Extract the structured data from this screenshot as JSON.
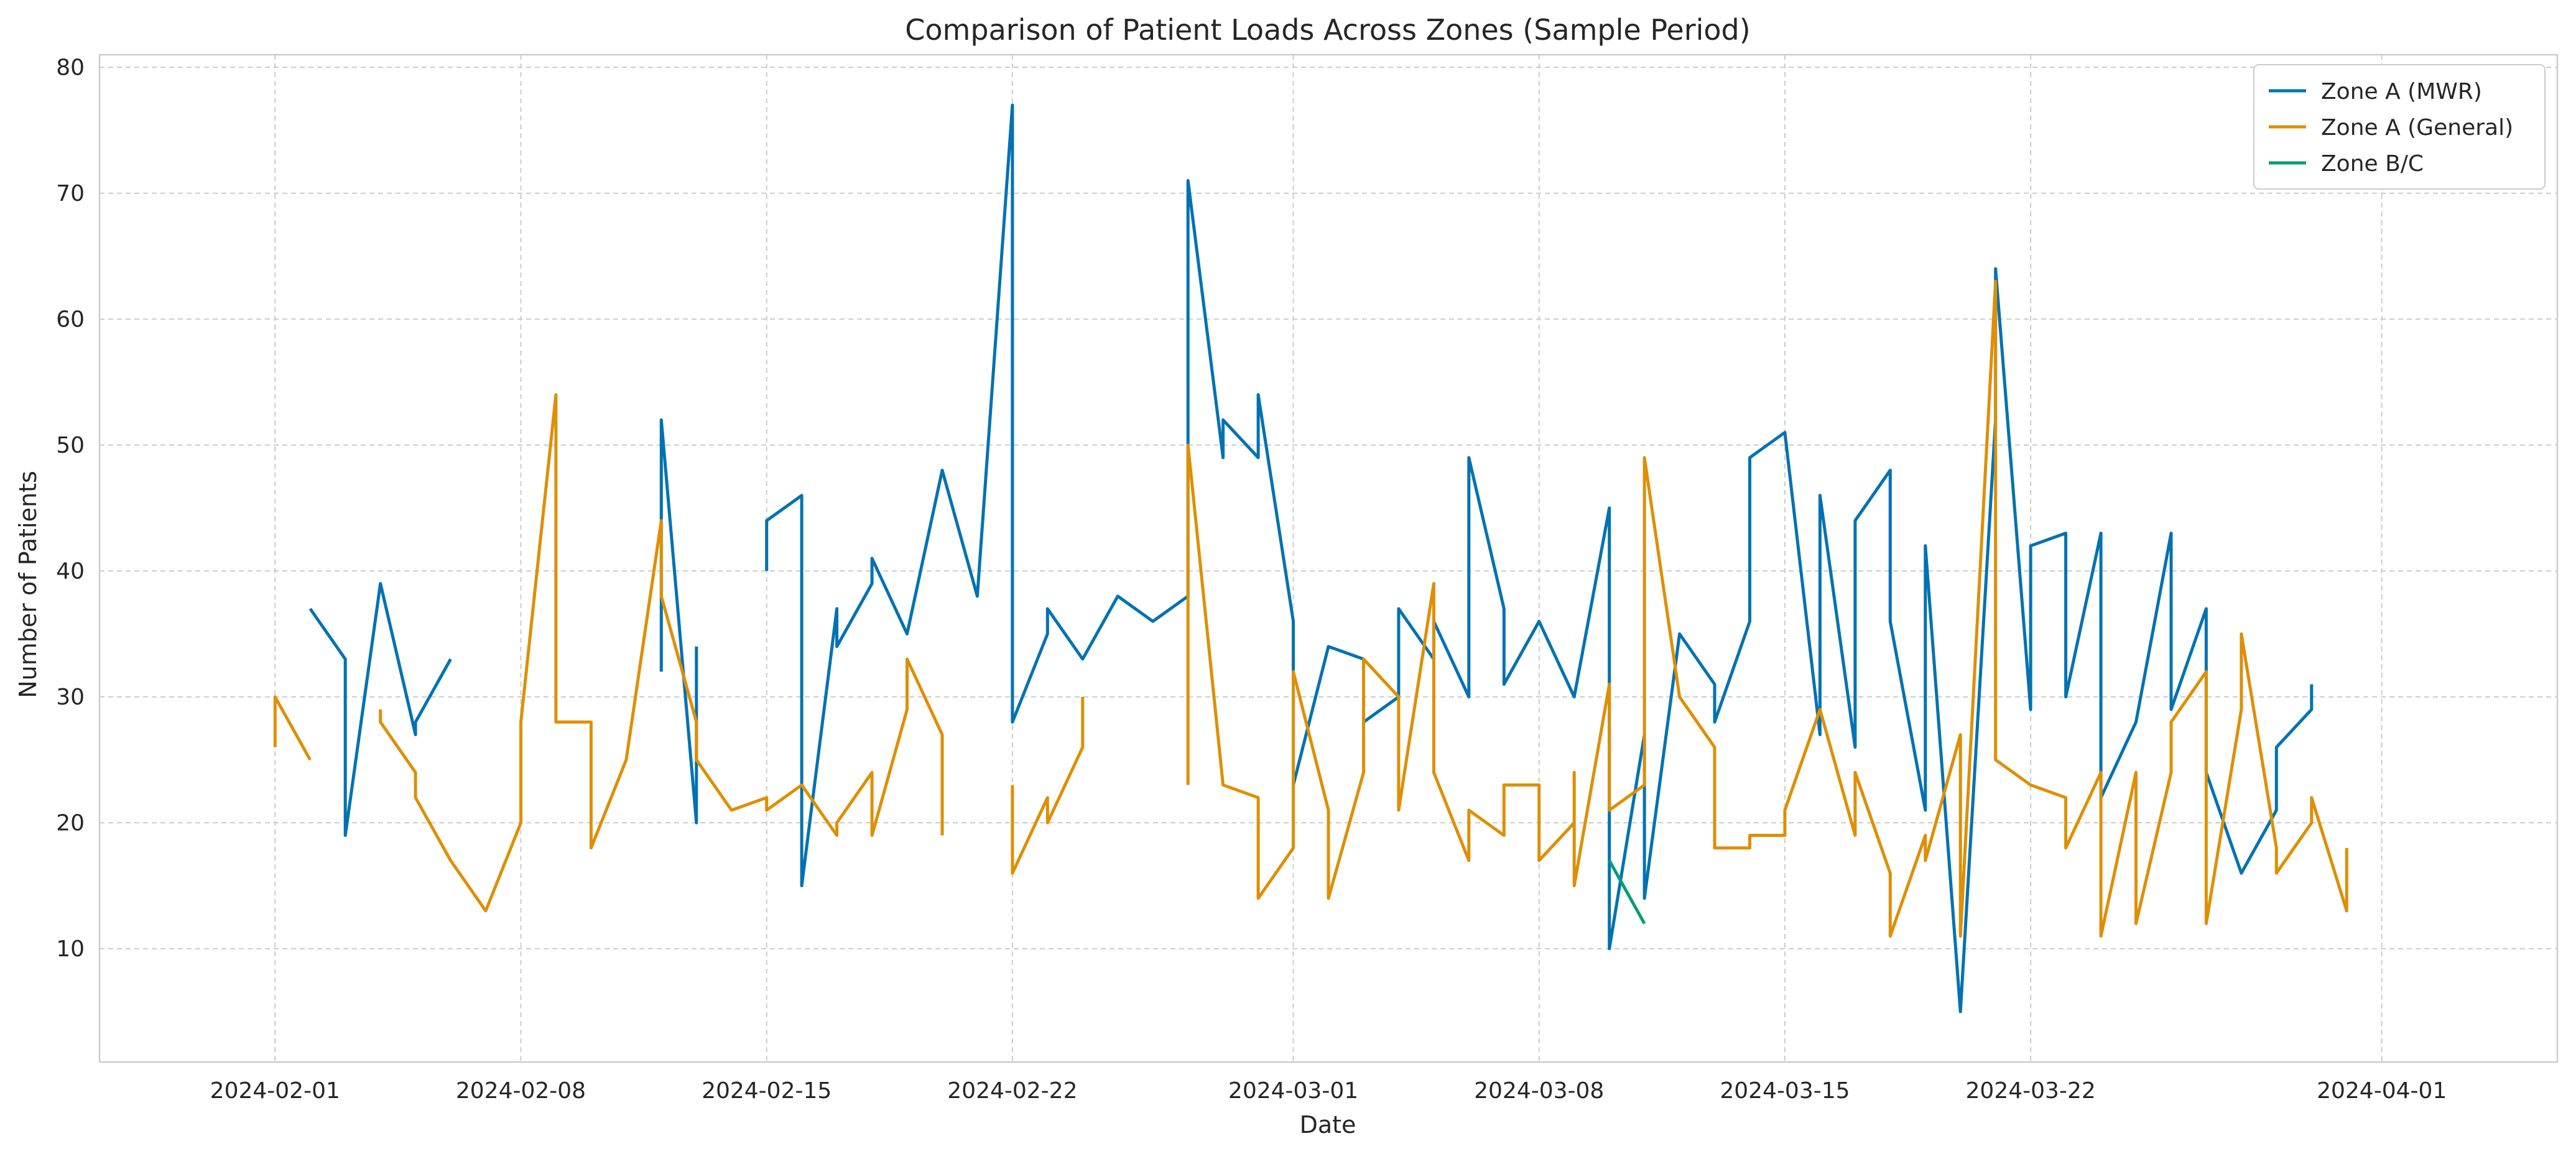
{
  "chart_data": {
    "type": "line",
    "title": "Comparison of Patient Loads Across Zones (Sample Period)",
    "xlabel": "Date",
    "ylabel": "Number of Patients",
    "x_axis_type": "date",
    "xlim": [
      "2024-01-27",
      "2024-04-06"
    ],
    "ylim": [
      1,
      81
    ],
    "x_ticks": [
      "2024-02-01",
      "2024-02-08",
      "2024-02-15",
      "2024-02-22",
      "2024-03-01",
      "2024-03-08",
      "2024-03-15",
      "2024-03-22",
      "2024-04-01"
    ],
    "y_ticks": [
      10,
      20,
      30,
      40,
      50,
      60,
      70,
      80
    ],
    "grid": true,
    "legend_position": "top-right",
    "series": [
      {
        "name": "Zone A (MWR)",
        "color": "#0072b2",
        "points": [
          [
            "2024-02-02",
            37
          ],
          [
            "2024-02-03",
            33
          ],
          [
            "2024-02-03",
            19
          ],
          [
            "2024-02-04",
            39
          ],
          [
            "2024-02-05",
            27
          ],
          [
            "2024-02-05",
            28
          ],
          [
            "2024-02-06",
            33
          ],
          [
            "2024-02-12",
            32
          ],
          [
            "2024-02-12",
            52
          ],
          [
            "2024-02-13",
            20
          ],
          [
            "2024-02-13",
            34
          ],
          [
            "2024-02-15",
            40
          ],
          [
            "2024-02-15",
            44
          ],
          [
            "2024-02-16",
            46
          ],
          [
            "2024-02-16",
            15
          ],
          [
            "2024-02-17",
            37
          ],
          [
            "2024-02-17",
            34
          ],
          [
            "2024-02-18",
            39
          ],
          [
            "2024-02-18",
            41
          ],
          [
            "2024-02-19",
            35
          ],
          [
            "2024-02-20",
            48
          ],
          [
            "2024-02-21",
            38
          ],
          [
            "2024-02-22",
            77
          ],
          [
            "2024-02-22",
            28
          ],
          [
            "2024-02-23",
            35
          ],
          [
            "2024-02-23",
            37
          ],
          [
            "2024-02-24",
            33
          ],
          [
            "2024-02-25",
            38
          ],
          [
            "2024-02-26",
            36
          ],
          [
            "2024-02-27",
            38
          ],
          [
            "2024-02-27",
            71
          ],
          [
            "2024-02-28",
            49
          ],
          [
            "2024-02-28",
            52
          ],
          [
            "2024-02-29",
            49
          ],
          [
            "2024-02-29",
            54
          ],
          [
            "2024-03-01",
            36
          ],
          [
            "2024-03-01",
            23
          ],
          [
            "2024-03-02",
            34
          ],
          [
            "2024-03-03",
            33
          ],
          [
            "2024-03-03",
            28
          ],
          [
            "2024-03-04",
            30
          ],
          [
            "2024-03-04",
            37
          ],
          [
            "2024-03-05",
            33
          ],
          [
            "2024-03-05",
            36
          ],
          [
            "2024-03-06",
            30
          ],
          [
            "2024-03-06",
            49
          ],
          [
            "2024-03-07",
            37
          ],
          [
            "2024-03-07",
            31
          ],
          [
            "2024-03-08",
            36
          ],
          [
            "2024-03-09",
            30
          ],
          [
            "2024-03-10",
            45
          ],
          [
            "2024-03-10",
            10
          ],
          [
            "2024-03-11",
            27
          ],
          [
            "2024-03-11",
            14
          ],
          [
            "2024-03-12",
            35
          ],
          [
            "2024-03-13",
            31
          ],
          [
            "2024-03-13",
            28
          ],
          [
            "2024-03-14",
            36
          ],
          [
            "2024-03-14",
            49
          ],
          [
            "2024-03-15",
            51
          ],
          [
            "2024-03-16",
            27
          ],
          [
            "2024-03-16",
            46
          ],
          [
            "2024-03-17",
            26
          ],
          [
            "2024-03-17",
            44
          ],
          [
            "2024-03-18",
            48
          ],
          [
            "2024-03-18",
            36
          ],
          [
            "2024-03-19",
            21
          ],
          [
            "2024-03-19",
            42
          ],
          [
            "2024-03-20",
            5
          ],
          [
            "2024-03-21",
            52
          ],
          [
            "2024-03-21",
            64
          ],
          [
            "2024-03-22",
            29
          ],
          [
            "2024-03-22",
            42
          ],
          [
            "2024-03-23",
            43
          ],
          [
            "2024-03-23",
            30
          ],
          [
            "2024-03-24",
            43
          ],
          [
            "2024-03-24",
            22
          ],
          [
            "2024-03-25",
            28
          ],
          [
            "2024-03-26",
            43
          ],
          [
            "2024-03-26",
            29
          ],
          [
            "2024-03-27",
            37
          ],
          [
            "2024-03-27",
            24
          ],
          [
            "2024-03-28",
            16
          ],
          [
            "2024-03-29",
            21
          ],
          [
            "2024-03-29",
            26
          ],
          [
            "2024-03-30",
            29
          ],
          [
            "2024-03-30",
            31
          ]
        ]
      },
      {
        "name": "Zone A (General)",
        "color": "#de8f05",
        "points": [
          [
            "2024-02-01",
            26
          ],
          [
            "2024-02-01",
            30
          ],
          [
            "2024-02-02",
            25
          ],
          [
            "2024-02-04",
            29
          ],
          [
            "2024-02-04",
            28
          ],
          [
            "2024-02-05",
            24
          ],
          [
            "2024-02-05",
            22
          ],
          [
            "2024-02-06",
            17
          ],
          [
            "2024-02-07",
            13
          ],
          [
            "2024-02-08",
            20
          ],
          [
            "2024-02-08",
            28
          ],
          [
            "2024-02-09",
            54
          ],
          [
            "2024-02-09",
            28
          ],
          [
            "2024-02-10",
            28
          ],
          [
            "2024-02-10",
            18
          ],
          [
            "2024-02-11",
            25
          ],
          [
            "2024-02-11",
            25
          ],
          [
            "2024-02-12",
            44
          ],
          [
            "2024-02-12",
            38
          ],
          [
            "2024-02-13",
            28
          ],
          [
            "2024-02-13",
            25
          ],
          [
            "2024-02-14",
            21
          ],
          [
            "2024-02-14",
            21
          ],
          [
            "2024-02-15",
            22
          ],
          [
            "2024-02-15",
            21
          ],
          [
            "2024-02-16",
            23
          ],
          [
            "2024-02-16",
            23
          ],
          [
            "2024-02-17",
            19
          ],
          [
            "2024-02-17",
            20
          ],
          [
            "2024-02-18",
            24
          ],
          [
            "2024-02-18",
            19
          ],
          [
            "2024-02-19",
            29
          ],
          [
            "2024-02-19",
            33
          ],
          [
            "2024-02-20",
            27
          ],
          [
            "2024-02-20",
            19
          ],
          [
            "2024-02-22",
            23
          ],
          [
            "2024-02-22",
            16
          ],
          [
            "2024-02-23",
            22
          ],
          [
            "2024-02-23",
            20
          ],
          [
            "2024-02-24",
            26
          ],
          [
            "2024-02-24",
            30
          ],
          [
            "2024-02-27",
            23
          ],
          [
            "2024-02-27",
            50
          ],
          [
            "2024-02-28",
            23
          ],
          [
            "2024-02-28",
            23
          ],
          [
            "2024-02-29",
            22
          ],
          [
            "2024-02-29",
            14
          ],
          [
            "2024-03-01",
            18
          ],
          [
            "2024-03-01",
            32
          ],
          [
            "2024-03-02",
            21
          ],
          [
            "2024-03-02",
            14
          ],
          [
            "2024-03-03",
            24
          ],
          [
            "2024-03-03",
            33
          ],
          [
            "2024-03-04",
            30
          ],
          [
            "2024-03-04",
            21
          ],
          [
            "2024-03-05",
            39
          ],
          [
            "2024-03-05",
            24
          ],
          [
            "2024-03-06",
            17
          ],
          [
            "2024-03-06",
            21
          ],
          [
            "2024-03-07",
            19
          ],
          [
            "2024-03-07",
            23
          ],
          [
            "2024-03-08",
            23
          ],
          [
            "2024-03-08",
            17
          ],
          [
            "2024-03-09",
            20
          ],
          [
            "2024-03-09",
            24
          ],
          [
            "2024-03-09",
            15
          ],
          [
            "2024-03-10",
            31
          ],
          [
            "2024-03-10",
            21
          ],
          [
            "2024-03-11",
            23
          ],
          [
            "2024-03-11",
            49
          ],
          [
            "2024-03-12",
            30
          ],
          [
            "2024-03-13",
            26
          ],
          [
            "2024-03-13",
            18
          ],
          [
            "2024-03-14",
            18
          ],
          [
            "2024-03-14",
            19
          ],
          [
            "2024-03-15",
            19
          ],
          [
            "2024-03-15",
            21
          ],
          [
            "2024-03-16",
            29
          ],
          [
            "2024-03-17",
            19
          ],
          [
            "2024-03-17",
            24
          ],
          [
            "2024-03-18",
            16
          ],
          [
            "2024-03-18",
            11
          ],
          [
            "2024-03-19",
            19
          ],
          [
            "2024-03-19",
            17
          ],
          [
            "2024-03-20",
            27
          ],
          [
            "2024-03-20",
            11
          ],
          [
            "2024-03-21",
            63
          ],
          [
            "2024-03-21",
            25
          ],
          [
            "2024-03-22",
            23
          ],
          [
            "2024-03-23",
            22
          ],
          [
            "2024-03-23",
            18
          ],
          [
            "2024-03-24",
            24
          ],
          [
            "2024-03-24",
            11
          ],
          [
            "2024-03-25",
            24
          ],
          [
            "2024-03-25",
            12
          ],
          [
            "2024-03-26",
            24
          ],
          [
            "2024-03-26",
            28
          ],
          [
            "2024-03-27",
            32
          ],
          [
            "2024-03-27",
            12
          ],
          [
            "2024-03-28",
            29
          ],
          [
            "2024-03-28",
            35
          ],
          [
            "2024-03-29",
            18
          ],
          [
            "2024-03-29",
            16
          ],
          [
            "2024-03-30",
            20
          ],
          [
            "2024-03-30",
            22
          ],
          [
            "2024-03-31",
            13
          ],
          [
            "2024-03-31",
            18
          ]
        ]
      },
      {
        "name": "Zone B/C",
        "color": "#029e73",
        "points": [
          [
            "2024-03-10",
            17
          ],
          [
            "2024-03-11",
            12
          ]
        ]
      }
    ]
  }
}
